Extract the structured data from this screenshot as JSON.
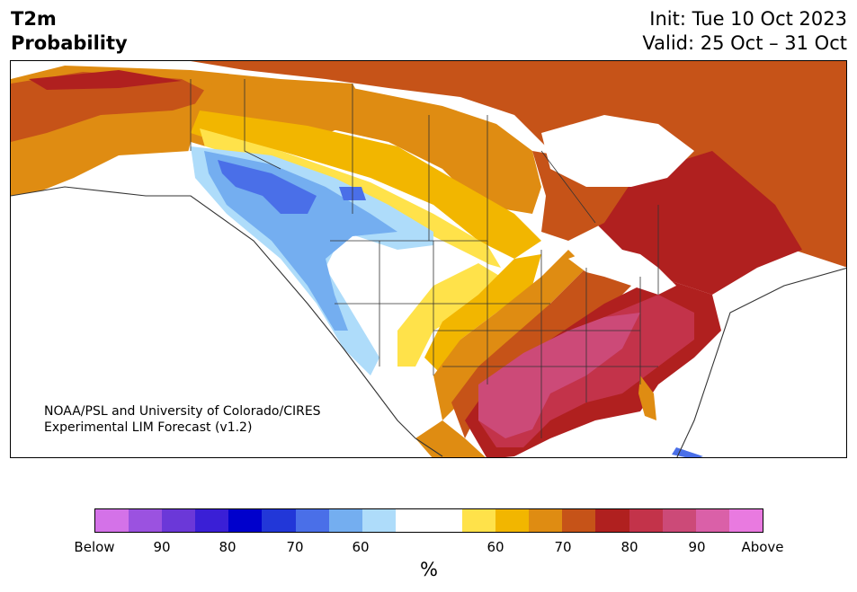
{
  "title": {
    "line1": "T2m",
    "line2": "Probability"
  },
  "dates": {
    "init": "Init: Tue 10 Oct 2023",
    "valid": "Valid: 25 Oct – 31 Oct"
  },
  "credit": {
    "line1": "NOAA/PSL and University of Colorado/CIRES",
    "line2": "Experimental LIM Forecast (v1.2)"
  },
  "colorbar": {
    "unit": "%",
    "colors": [
      "#d472e8",
      "#9b52e0",
      "#6b38d8",
      "#3a1fd6",
      "#0000cc",
      "#2237d8",
      "#4a6fe8",
      "#74aef0",
      "#aedcfa",
      "#ffffff",
      "#ffffff",
      "#ffe24a",
      "#f2b600",
      "#df8c12",
      "#c65318",
      "#b0201f",
      "#c3334a",
      "#cc4a78",
      "#da60a8",
      "#e97ae0"
    ],
    "labels": [
      "Below",
      "90",
      "80",
      "70",
      "60",
      "60",
      "70",
      "80",
      "90",
      "Above"
    ]
  },
  "map": {
    "region": "North America",
    "categories": {
      "below_normal": [
        "#aedcfa",
        "#74aef0",
        "#4a6fe8"
      ],
      "near_normal": "#ffffff",
      "above_normal": [
        "#ffe24a",
        "#f2b600",
        "#df8c12",
        "#c65318",
        "#b0201f",
        "#c3334a",
        "#cc4a78"
      ]
    }
  }
}
